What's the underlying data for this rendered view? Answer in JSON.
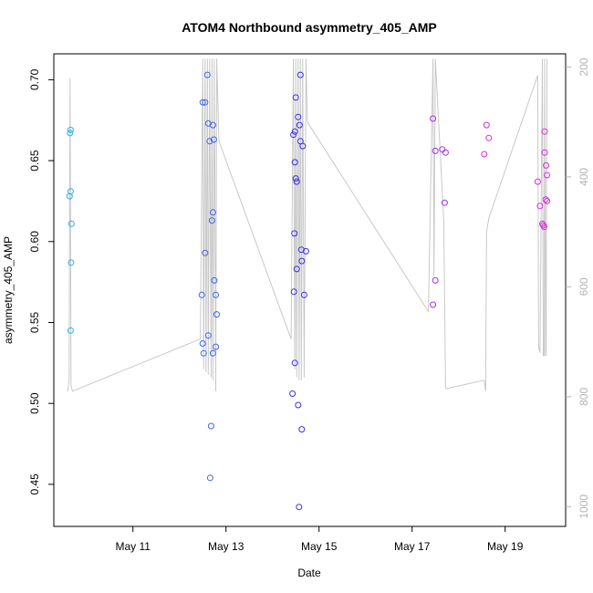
{
  "chart_data": {
    "type": "scatter",
    "title": "ATOM4 Northbound asymmetry_405_AMP",
    "xlabel": "Date",
    "ylabel": "asymmetry_405_AMP",
    "y2label": "",
    "x_ticks": [
      "May 11",
      "May 13",
      "May 15",
      "May 17",
      "May 19"
    ],
    "x_tick_values": [
      11,
      13,
      15,
      17,
      19
    ],
    "xlim": [
      9.3,
      20.3
    ],
    "ylim": [
      0.424,
      0.716
    ],
    "y_ticks": [
      0.45,
      0.5,
      0.55,
      0.6,
      0.65,
      0.7
    ],
    "y_tick_labels": [
      "0.45",
      "0.50",
      "0.55",
      "0.60",
      "0.65",
      "0.70"
    ],
    "y2lim": [
      1036,
      176
    ],
    "y2_ticks": [
      200,
      400,
      600,
      800,
      1000
    ],
    "y2_tick_labels": [
      "200",
      "400",
      "600",
      "800",
      "1000"
    ],
    "grid": false,
    "legend": "none",
    "colors": {
      "line": "#c8c8c8",
      "axis": "#000000",
      "axis2": "#b3b3b3"
    },
    "series": [
      {
        "color": "#29b2e6",
        "points": [
          [
            9.66,
            0.669
          ],
          [
            9.65,
            0.667
          ],
          [
            9.66,
            0.631
          ],
          [
            9.64,
            0.628
          ],
          [
            9.68,
            0.611
          ],
          [
            9.67,
            0.587
          ],
          [
            9.66,
            0.545
          ]
        ]
      },
      {
        "color": "#3d66e6",
        "points": [
          [
            12.5,
            0.686
          ],
          [
            12.55,
            0.686
          ],
          [
            12.6,
            0.703
          ],
          [
            12.62,
            0.673
          ],
          [
            12.65,
            0.662
          ],
          [
            12.72,
            0.672
          ],
          [
            12.74,
            0.663
          ],
          [
            12.72,
            0.618
          ],
          [
            12.7,
            0.613
          ],
          [
            12.55,
            0.593
          ],
          [
            12.75,
            0.576
          ],
          [
            12.48,
            0.567
          ],
          [
            12.78,
            0.567
          ],
          [
            12.8,
            0.555
          ],
          [
            12.62,
            0.542
          ],
          [
            12.5,
            0.537
          ],
          [
            12.78,
            0.535
          ],
          [
            12.52,
            0.531
          ],
          [
            12.72,
            0.531
          ],
          [
            12.68,
            0.486
          ],
          [
            12.66,
            0.454
          ]
        ]
      },
      {
        "color": "#3a2ee6",
        "points": [
          [
            14.6,
            0.703
          ],
          [
            14.5,
            0.689
          ],
          [
            14.55,
            0.677
          ],
          [
            14.58,
            0.672
          ],
          [
            14.48,
            0.668
          ],
          [
            14.45,
            0.666
          ],
          [
            14.6,
            0.662
          ],
          [
            14.65,
            0.659
          ],
          [
            14.48,
            0.649
          ],
          [
            14.5,
            0.639
          ],
          [
            14.52,
            0.637
          ],
          [
            14.47,
            0.605
          ],
          [
            14.62,
            0.595
          ],
          [
            14.72,
            0.594
          ],
          [
            14.63,
            0.588
          ],
          [
            14.52,
            0.583
          ],
          [
            14.46,
            0.569
          ],
          [
            14.68,
            0.567
          ],
          [
            14.48,
            0.525
          ],
          [
            14.43,
            0.506
          ],
          [
            14.55,
            0.499
          ],
          [
            14.63,
            0.484
          ],
          [
            14.57,
            0.436
          ]
        ]
      },
      {
        "color": "#a52ee6",
        "points": [
          [
            17.45,
            0.676
          ],
          [
            17.5,
            0.656
          ],
          [
            17.65,
            0.657
          ],
          [
            17.72,
            0.655
          ],
          [
            17.7,
            0.624
          ],
          [
            17.5,
            0.576
          ],
          [
            17.45,
            0.561
          ]
        ]
      },
      {
        "color": "#d62ed9",
        "points": [
          [
            18.6,
            0.672
          ],
          [
            18.65,
            0.664
          ],
          [
            18.55,
            0.654
          ],
          [
            19.85,
            0.668
          ],
          [
            19.85,
            0.655
          ],
          [
            19.88,
            0.647
          ],
          [
            19.9,
            0.641
          ],
          [
            19.7,
            0.637
          ],
          [
            19.87,
            0.626
          ],
          [
            19.9,
            0.625
          ],
          [
            19.75,
            0.622
          ],
          [
            19.8,
            0.611
          ],
          [
            19.82,
            0.61
          ],
          [
            19.84,
            0.609
          ]
        ]
      }
    ],
    "secondary_line": {
      "x": [
        9.6,
        9.63,
        9.65,
        9.67,
        9.7,
        12.45,
        12.5,
        12.52,
        12.55,
        12.57,
        12.6,
        12.62,
        12.65,
        12.68,
        12.7,
        12.72,
        12.75,
        12.78,
        12.8,
        12.85,
        14.4,
        14.45,
        14.48,
        14.5,
        14.52,
        14.55,
        14.57,
        14.6,
        14.62,
        14.65,
        14.68,
        14.72,
        14.75,
        17.35,
        17.45,
        17.47,
        17.5,
        17.68,
        17.72,
        17.75,
        18.55,
        18.58,
        18.6,
        18.65,
        19.7,
        19.72,
        19.75,
        19.8,
        19.82,
        19.84,
        19.85,
        19.87,
        19.88,
        19.9
      ],
      "y": [
        790,
        770,
        220,
        780,
        790,
        695,
        185,
        750,
        185,
        755,
        185,
        760,
        185,
        765,
        185,
        770,
        185,
        790,
        185,
        335,
        695,
        185,
        750,
        185,
        765,
        185,
        770,
        185,
        770,
        185,
        765,
        185,
        300,
        645,
        185,
        580,
        185,
        480,
        785,
        785,
        770,
        790,
        500,
        475,
        215,
        710,
        720,
        185,
        725,
        725,
        185,
        725,
        725,
        185
      ]
    }
  }
}
